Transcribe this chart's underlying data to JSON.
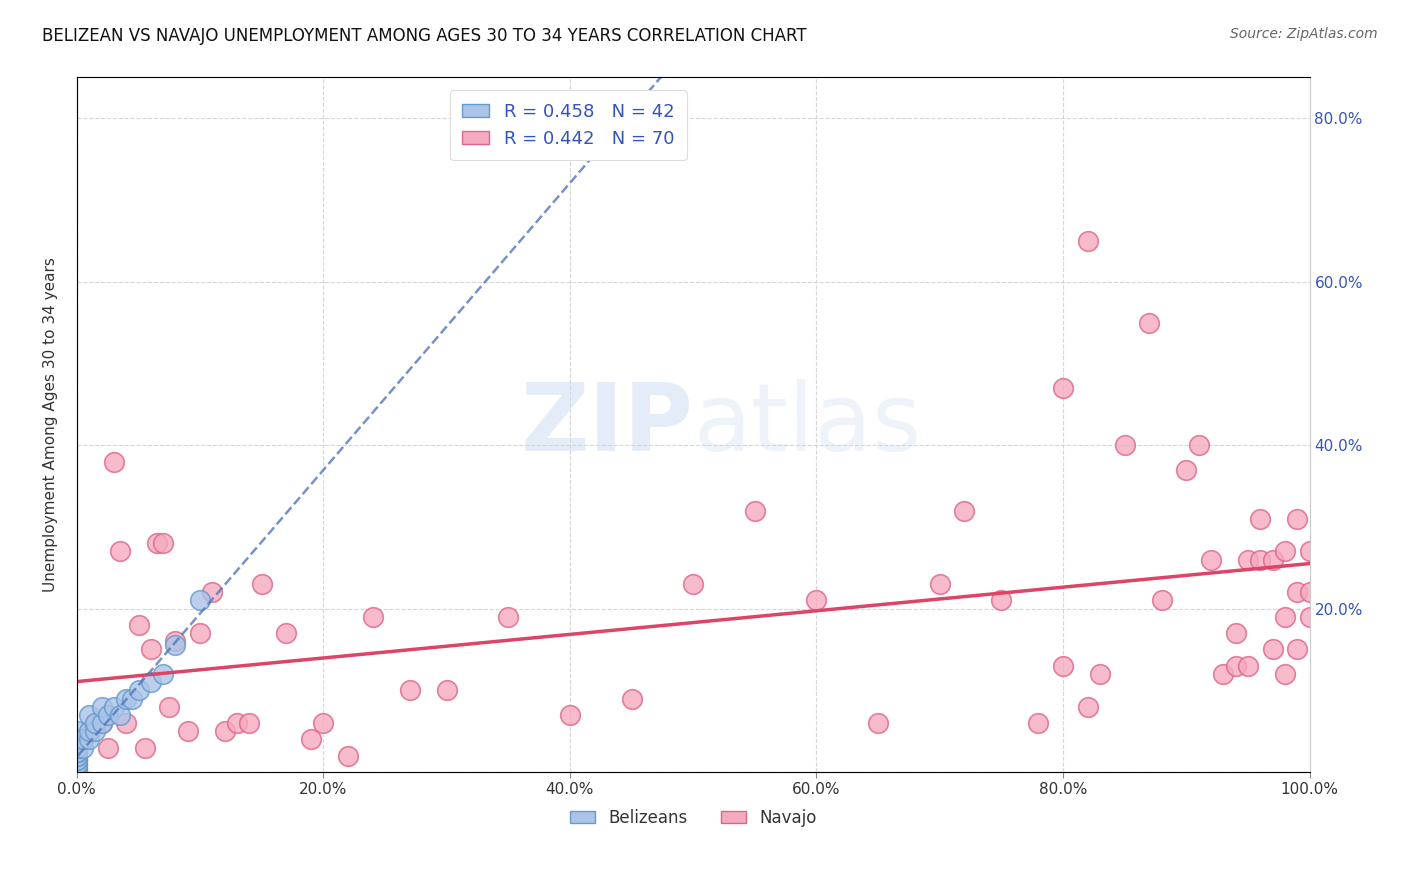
{
  "title": "BELIZEAN VS NAVAJO UNEMPLOYMENT AMONG AGES 30 TO 34 YEARS CORRELATION CHART",
  "source": "Source: ZipAtlas.com",
  "ylabel": "Unemployment Among Ages 30 to 34 years",
  "xlim": [
    0.0,
    1.0
  ],
  "ylim": [
    0.0,
    0.85
  ],
  "xticks": [
    0.0,
    0.2,
    0.4,
    0.6,
    0.8,
    1.0
  ],
  "xticklabels": [
    "0.0%",
    "20.0%",
    "40.0%",
    "60.0%",
    "80.0%",
    "100.0%"
  ],
  "yticks": [
    0.0,
    0.2,
    0.4,
    0.6,
    0.8
  ],
  "yticklabels": [
    "",
    "",
    "",
    "",
    ""
  ],
  "right_yticks": [
    0.2,
    0.4,
    0.6,
    0.8
  ],
  "right_yticklabels": [
    "20.0%",
    "40.0%",
    "60.0%",
    "80.0%"
  ],
  "belizean_color": "#aac4e8",
  "navajo_color": "#f5aabf",
  "belizean_edge": "#6699cc",
  "navajo_edge": "#dd6688",
  "trendline_belizean_color": "#5577bb",
  "trendline_navajo_color": "#dd4466",
  "background_color": "#ffffff",
  "grid_color": "#cccccc",
  "legend_r_belizean": "R = 0.458",
  "legend_n_belizean": "N = 42",
  "legend_r_navajo": "R = 0.442",
  "legend_n_navajo": "N = 70",
  "legend_text_color": "#3355bb",
  "watermark_zip": "ZIP",
  "watermark_atlas": "atlas",
  "title_fontsize": 12,
  "belizean_x": [
    0.0,
    0.0,
    0.0,
    0.0,
    0.0,
    0.0,
    0.0,
    0.0,
    0.0,
    0.0,
    0.0,
    0.0,
    0.0,
    0.0,
    0.0,
    0.0,
    0.0,
    0.0,
    0.0,
    0.0,
    0.0,
    0.0,
    0.0,
    0.005,
    0.005,
    0.01,
    0.01,
    0.01,
    0.015,
    0.015,
    0.02,
    0.02,
    0.025,
    0.03,
    0.035,
    0.04,
    0.045,
    0.05,
    0.06,
    0.07,
    0.08,
    0.1
  ],
  "belizean_y": [
    0.0,
    0.0,
    0.0,
    0.0,
    0.0,
    0.0,
    0.0,
    0.0,
    0.005,
    0.005,
    0.01,
    0.01,
    0.015,
    0.015,
    0.02,
    0.02,
    0.025,
    0.025,
    0.03,
    0.03,
    0.035,
    0.04,
    0.05,
    0.03,
    0.04,
    0.04,
    0.05,
    0.07,
    0.05,
    0.06,
    0.06,
    0.08,
    0.07,
    0.08,
    0.07,
    0.09,
    0.09,
    0.1,
    0.11,
    0.12,
    0.155,
    0.21
  ],
  "navajo_x": [
    0.0,
    0.005,
    0.01,
    0.015,
    0.02,
    0.025,
    0.03,
    0.035,
    0.04,
    0.05,
    0.055,
    0.06,
    0.065,
    0.07,
    0.075,
    0.08,
    0.09,
    0.1,
    0.11,
    0.12,
    0.13,
    0.14,
    0.15,
    0.17,
    0.19,
    0.2,
    0.22,
    0.24,
    0.27,
    0.3,
    0.35,
    0.4,
    0.45,
    0.5,
    0.55,
    0.6,
    0.65,
    0.7,
    0.72,
    0.75,
    0.78,
    0.8,
    0.82,
    0.83,
    0.85,
    0.87,
    0.88,
    0.9,
    0.91,
    0.92,
    0.93,
    0.94,
    0.94,
    0.95,
    0.95,
    0.96,
    0.96,
    0.97,
    0.97,
    0.98,
    0.98,
    0.98,
    0.99,
    0.99,
    0.99,
    1.0,
    1.0,
    1.0,
    0.8,
    0.82
  ],
  "navajo_y": [
    0.015,
    0.04,
    0.05,
    0.06,
    0.06,
    0.03,
    0.38,
    0.27,
    0.06,
    0.18,
    0.03,
    0.15,
    0.28,
    0.28,
    0.08,
    0.16,
    0.05,
    0.17,
    0.22,
    0.05,
    0.06,
    0.06,
    0.23,
    0.17,
    0.04,
    0.06,
    0.02,
    0.19,
    0.1,
    0.1,
    0.19,
    0.07,
    0.09,
    0.23,
    0.32,
    0.21,
    0.06,
    0.23,
    0.32,
    0.21,
    0.06,
    0.13,
    0.08,
    0.12,
    0.4,
    0.55,
    0.21,
    0.37,
    0.4,
    0.26,
    0.12,
    0.17,
    0.13,
    0.26,
    0.13,
    0.26,
    0.31,
    0.15,
    0.26,
    0.19,
    0.27,
    0.12,
    0.22,
    0.31,
    0.15,
    0.22,
    0.19,
    0.27,
    0.47,
    0.65
  ]
}
